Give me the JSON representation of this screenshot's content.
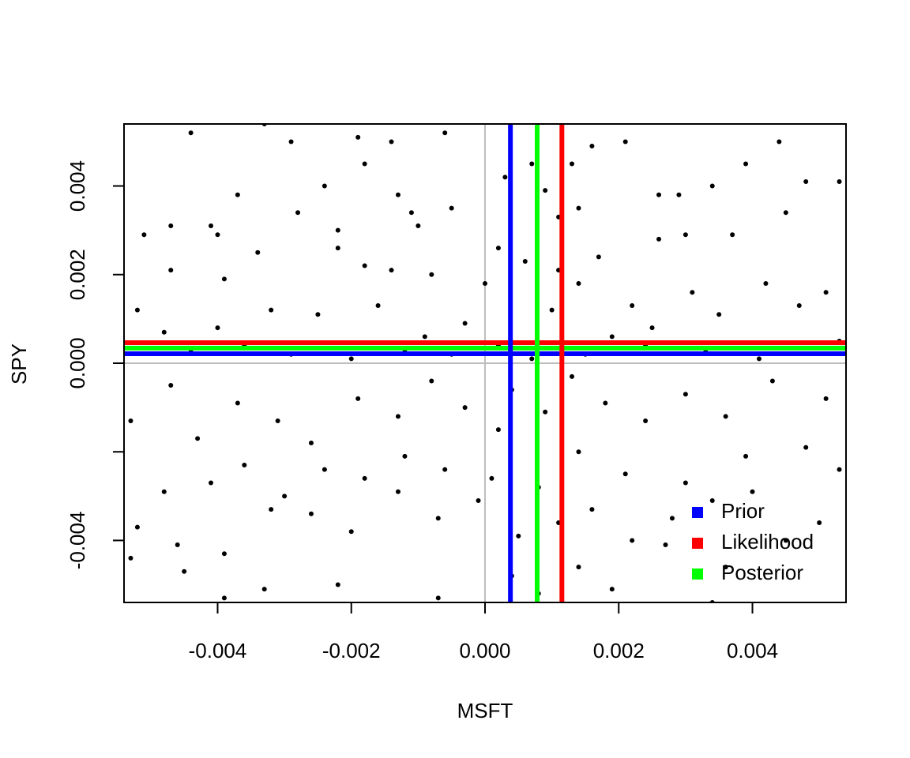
{
  "chart_data": {
    "type": "scatter",
    "x_label": "MSFT",
    "y_label": "SPY",
    "xlim": [
      -0.0054,
      0.0054
    ],
    "ylim": [
      -0.0054,
      0.0054
    ],
    "xticks": [
      {
        "value": -0.004,
        "label": "-0.004"
      },
      {
        "value": -0.002,
        "label": "-0.002"
      },
      {
        "value": 0,
        "label": "0.000"
      },
      {
        "value": 0.002,
        "label": "0.002"
      },
      {
        "value": 0.004,
        "label": "0.004"
      }
    ],
    "yticks": [
      {
        "value": -0.004,
        "label": "-0.004"
      },
      {
        "value": -0.002,
        "label": null
      },
      {
        "value": 0,
        "label": "0.000"
      },
      {
        "value": 0.002,
        "label": "0.002"
      },
      {
        "value": 0.004,
        "label": "0.004"
      }
    ],
    "point_color": "#000000",
    "x": [
      -0.0044,
      -0.0033,
      -0.0029,
      -0.0019,
      -0.0006,
      -0.0014,
      -0.0018,
      -0.0024,
      -0.0037,
      -0.0047,
      -0.0051,
      -0.0041,
      -0.0028,
      -0.0022,
      -0.0011,
      -0.001,
      -0.0005,
      -0.0013,
      -0.0034,
      -0.0047,
      -0.004,
      -0.0039,
      -0.0022,
      -0.0018,
      -0.0014,
      -0.0008,
      0.0,
      0.0002,
      0.0003,
      0.0007,
      0.0009,
      0.0011,
      0.0014,
      0.0013,
      0.0016,
      0.0021,
      0.0026,
      0.0029,
      0.0034,
      0.0039,
      0.0044,
      0.0048,
      0.0053,
      0.0045,
      0.0037,
      0.003,
      0.0026,
      0.0017,
      0.0011,
      0.0006,
      0.0014,
      0.0022,
      0.0031,
      0.0042,
      0.0051,
      0.0047,
      0.0035,
      0.0025,
      0.0019,
      0.001,
      0.0002,
      -0.0003,
      -0.0009,
      -0.0016,
      -0.0025,
      -0.0032,
      -0.004,
      -0.0048,
      -0.0052,
      -0.0044,
      -0.0036,
      -0.0029,
      -0.002,
      -0.0012,
      -0.0005,
      0.0007,
      0.0015,
      0.0024,
      0.0033,
      0.0041,
      0.0053,
      -0.0053,
      -0.0047,
      -0.0043,
      -0.0037,
      -0.0031,
      -0.0026,
      -0.0019,
      -0.0013,
      -0.0008,
      -0.0003,
      0.0002,
      0.0004,
      0.0009,
      0.0013,
      0.0018,
      0.0024,
      0.003,
      0.0036,
      0.0043,
      0.0051,
      0.0048,
      0.0039,
      0.003,
      0.0021,
      0.0014,
      0.0008,
      0.0001,
      -0.0006,
      -0.0012,
      -0.0018,
      -0.0024,
      -0.003,
      -0.0036,
      -0.0041,
      -0.0048,
      -0.0052,
      -0.0046,
      -0.0039,
      -0.0032,
      -0.0026,
      -0.002,
      -0.0013,
      -0.0007,
      -0.0001,
      0.0005,
      0.0011,
      0.0016,
      0.0022,
      0.0028,
      0.0034,
      0.004,
      0.005,
      0.0045,
      0.0036,
      0.0027,
      0.0014,
      0.0004,
      -0.0007,
      -0.0022,
      -0.0033,
      -0.0039,
      -0.0053,
      -0.0045,
      0.0008,
      0.0019,
      0.0034,
      0.0053
    ],
    "y": [
      0.0052,
      0.0054,
      0.005,
      0.0051,
      0.0052,
      0.005,
      0.0045,
      0.004,
      0.0038,
      0.0031,
      0.0029,
      0.0031,
      0.0034,
      0.003,
      0.0034,
      0.0031,
      0.0035,
      0.0038,
      0.0025,
      0.0021,
      0.0029,
      0.0019,
      0.0026,
      0.0022,
      0.0021,
      0.002,
      0.0018,
      0.0026,
      0.0042,
      0.0045,
      0.0039,
      0.0033,
      0.0035,
      0.0045,
      0.0049,
      0.005,
      0.0038,
      0.0038,
      0.004,
      0.0045,
      0.005,
      0.0041,
      0.0041,
      0.0034,
      0.0029,
      0.0029,
      0.0028,
      0.0024,
      0.0021,
      0.0023,
      0.0018,
      0.0013,
      0.0016,
      0.0018,
      0.0016,
      0.0013,
      0.0011,
      0.0008,
      0.0006,
      0.0012,
      0.0004,
      0.0009,
      0.0006,
      0.0013,
      0.0011,
      0.0012,
      0.0008,
      0.0007,
      0.0012,
      0.0003,
      0.0004,
      0.0002,
      0.0001,
      0.0003,
      0.0002,
      0.0001,
      0.0002,
      0.0004,
      0.0003,
      0.0001,
      0.0005,
      -0.0013,
      -0.0005,
      -0.0017,
      -0.0009,
      -0.0013,
      -0.0018,
      -0.0008,
      -0.0012,
      -0.0004,
      -0.001,
      -0.0015,
      -0.0006,
      -0.0011,
      -0.0003,
      -0.0009,
      -0.0013,
      -0.0007,
      -0.0012,
      -0.0004,
      -0.0008,
      -0.0019,
      -0.0021,
      -0.0027,
      -0.0025,
      -0.002,
      -0.0028,
      -0.0026,
      -0.0024,
      -0.0021,
      -0.0026,
      -0.0024,
      -0.003,
      -0.0023,
      -0.0027,
      -0.0029,
      -0.0037,
      -0.0041,
      -0.0043,
      -0.0033,
      -0.0034,
      -0.0038,
      -0.0029,
      -0.0035,
      -0.0031,
      -0.0039,
      -0.0036,
      -0.0033,
      -0.004,
      -0.0035,
      -0.0031,
      -0.0029,
      -0.0036,
      -0.004,
      -0.0046,
      -0.0041,
      -0.0046,
      -0.0048,
      -0.0053,
      -0.005,
      -0.0051,
      -0.0053,
      -0.0044,
      -0.0047,
      -0.0052,
      -0.0051,
      -0.0054,
      -0.0024
    ],
    "reference_lines": {
      "x": 0,
      "y": 0,
      "color": "#bebebe"
    },
    "lines": [
      {
        "name": "Prior",
        "color": "#0000ff",
        "x": 0.00038,
        "y": 0.000214
      },
      {
        "name": "Likelihood",
        "color": "#ff0000",
        "x": 0.00115,
        "y": 0.000464
      },
      {
        "name": "Posterior",
        "color": "#00ff00",
        "x": 0.00078,
        "y": 0.00034
      }
    ],
    "legend": "bottom-right"
  }
}
